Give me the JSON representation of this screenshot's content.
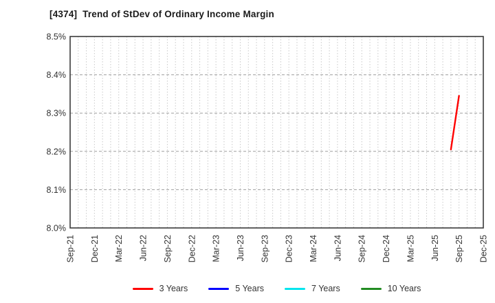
{
  "chart_data": {
    "type": "line",
    "title": "[4374]  Trend of StDev of Ordinary Income Margin",
    "xlabel": "",
    "ylabel": "",
    "ylim": [
      8.0,
      8.5
    ],
    "y_ticks": [
      {
        "value": 8.0,
        "label": "8.0%"
      },
      {
        "value": 8.1,
        "label": "8.1%"
      },
      {
        "value": 8.2,
        "label": "8.2%"
      },
      {
        "value": 8.3,
        "label": "8.3%"
      },
      {
        "value": 8.4,
        "label": "8.4%"
      },
      {
        "value": 8.5,
        "label": "8.5%"
      }
    ],
    "x_ticks": [
      "Sep-21",
      "Dec-21",
      "Mar-22",
      "Jun-22",
      "Sep-22",
      "Dec-22",
      "Mar-23",
      "Jun-23",
      "Sep-23",
      "Dec-23",
      "Mar-24",
      "Jun-24",
      "Sep-24",
      "Dec-24",
      "Mar-25",
      "Jun-25",
      "Sep-25",
      "Dec-25"
    ],
    "grid": {
      "vertical": "monthly-dotted",
      "horizontal": "dashed",
      "on": true
    },
    "legend_position": "bottom",
    "series": [
      {
        "name": "3 Years",
        "color": "#ff0000",
        "points": [
          {
            "x": "Aug-25",
            "y": 8.205
          },
          {
            "x": "Sep-25",
            "y": 8.345
          }
        ]
      },
      {
        "name": "5 Years",
        "color": "#0000ff",
        "points": []
      },
      {
        "name": "7 Years",
        "color": "#00e5ee",
        "points": []
      },
      {
        "name": "10 Years",
        "color": "#228b22",
        "points": []
      }
    ],
    "style": {
      "border_color": "#3a3a3a",
      "h_grid_color": "#9e9e9e",
      "v_grid_color": "#c8c8c8",
      "tick_label_color": "#333333",
      "title_color": "#1a1a1a",
      "line_width": 2.4
    }
  }
}
